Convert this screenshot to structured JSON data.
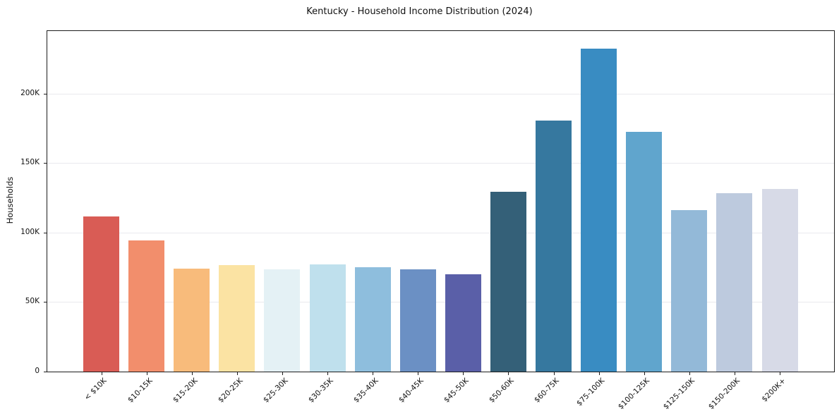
{
  "figure": {
    "title": "Kentucky - Household Income Distribution (2024)",
    "ylabel": "Households"
  },
  "chart_data": {
    "type": "bar",
    "title": "Kentucky - Household Income Distribution (2024)",
    "xlabel": "",
    "ylabel": "Households",
    "categories": [
      "< $10K",
      "$10-15K",
      "$15-20K",
      "$20-25K",
      "$25-30K",
      "$30-35K",
      "$35-40K",
      "$40-45K",
      "$45-50K",
      "$50-60K",
      "$60-75K",
      "$75-100K",
      "$100-125K",
      "$125-150K",
      "$150-200K",
      "$200K+"
    ],
    "values": [
      111500,
      94500,
      74000,
      76500,
      73500,
      77000,
      75000,
      73500,
      70000,
      129500,
      180500,
      232500,
      172500,
      116000,
      128500,
      131500
    ],
    "bar_colors": [
      "#d95c55",
      "#f28e6c",
      "#f8bb7b",
      "#fbe3a3",
      "#e4f1f5",
      "#bfe0ed",
      "#8ebedd",
      "#6b90c4",
      "#5a5fa8",
      "#346078",
      "#36789f",
      "#398cc2",
      "#60a5cd",
      "#93b9d8",
      "#bdcade",
      "#d7dae7"
    ],
    "ylim": [
      0,
      245000
    ],
    "yticks": {
      "values": [
        0,
        50000,
        100000,
        150000,
        200000
      ],
      "labels": [
        "0",
        "50K",
        "100K",
        "150K",
        "200K"
      ]
    },
    "grid": "horizontal",
    "gridline_color": "#e9e9ee",
    "legend": "none",
    "background_color": "#ffffff",
    "spine_color": "#1d1d1d"
  }
}
